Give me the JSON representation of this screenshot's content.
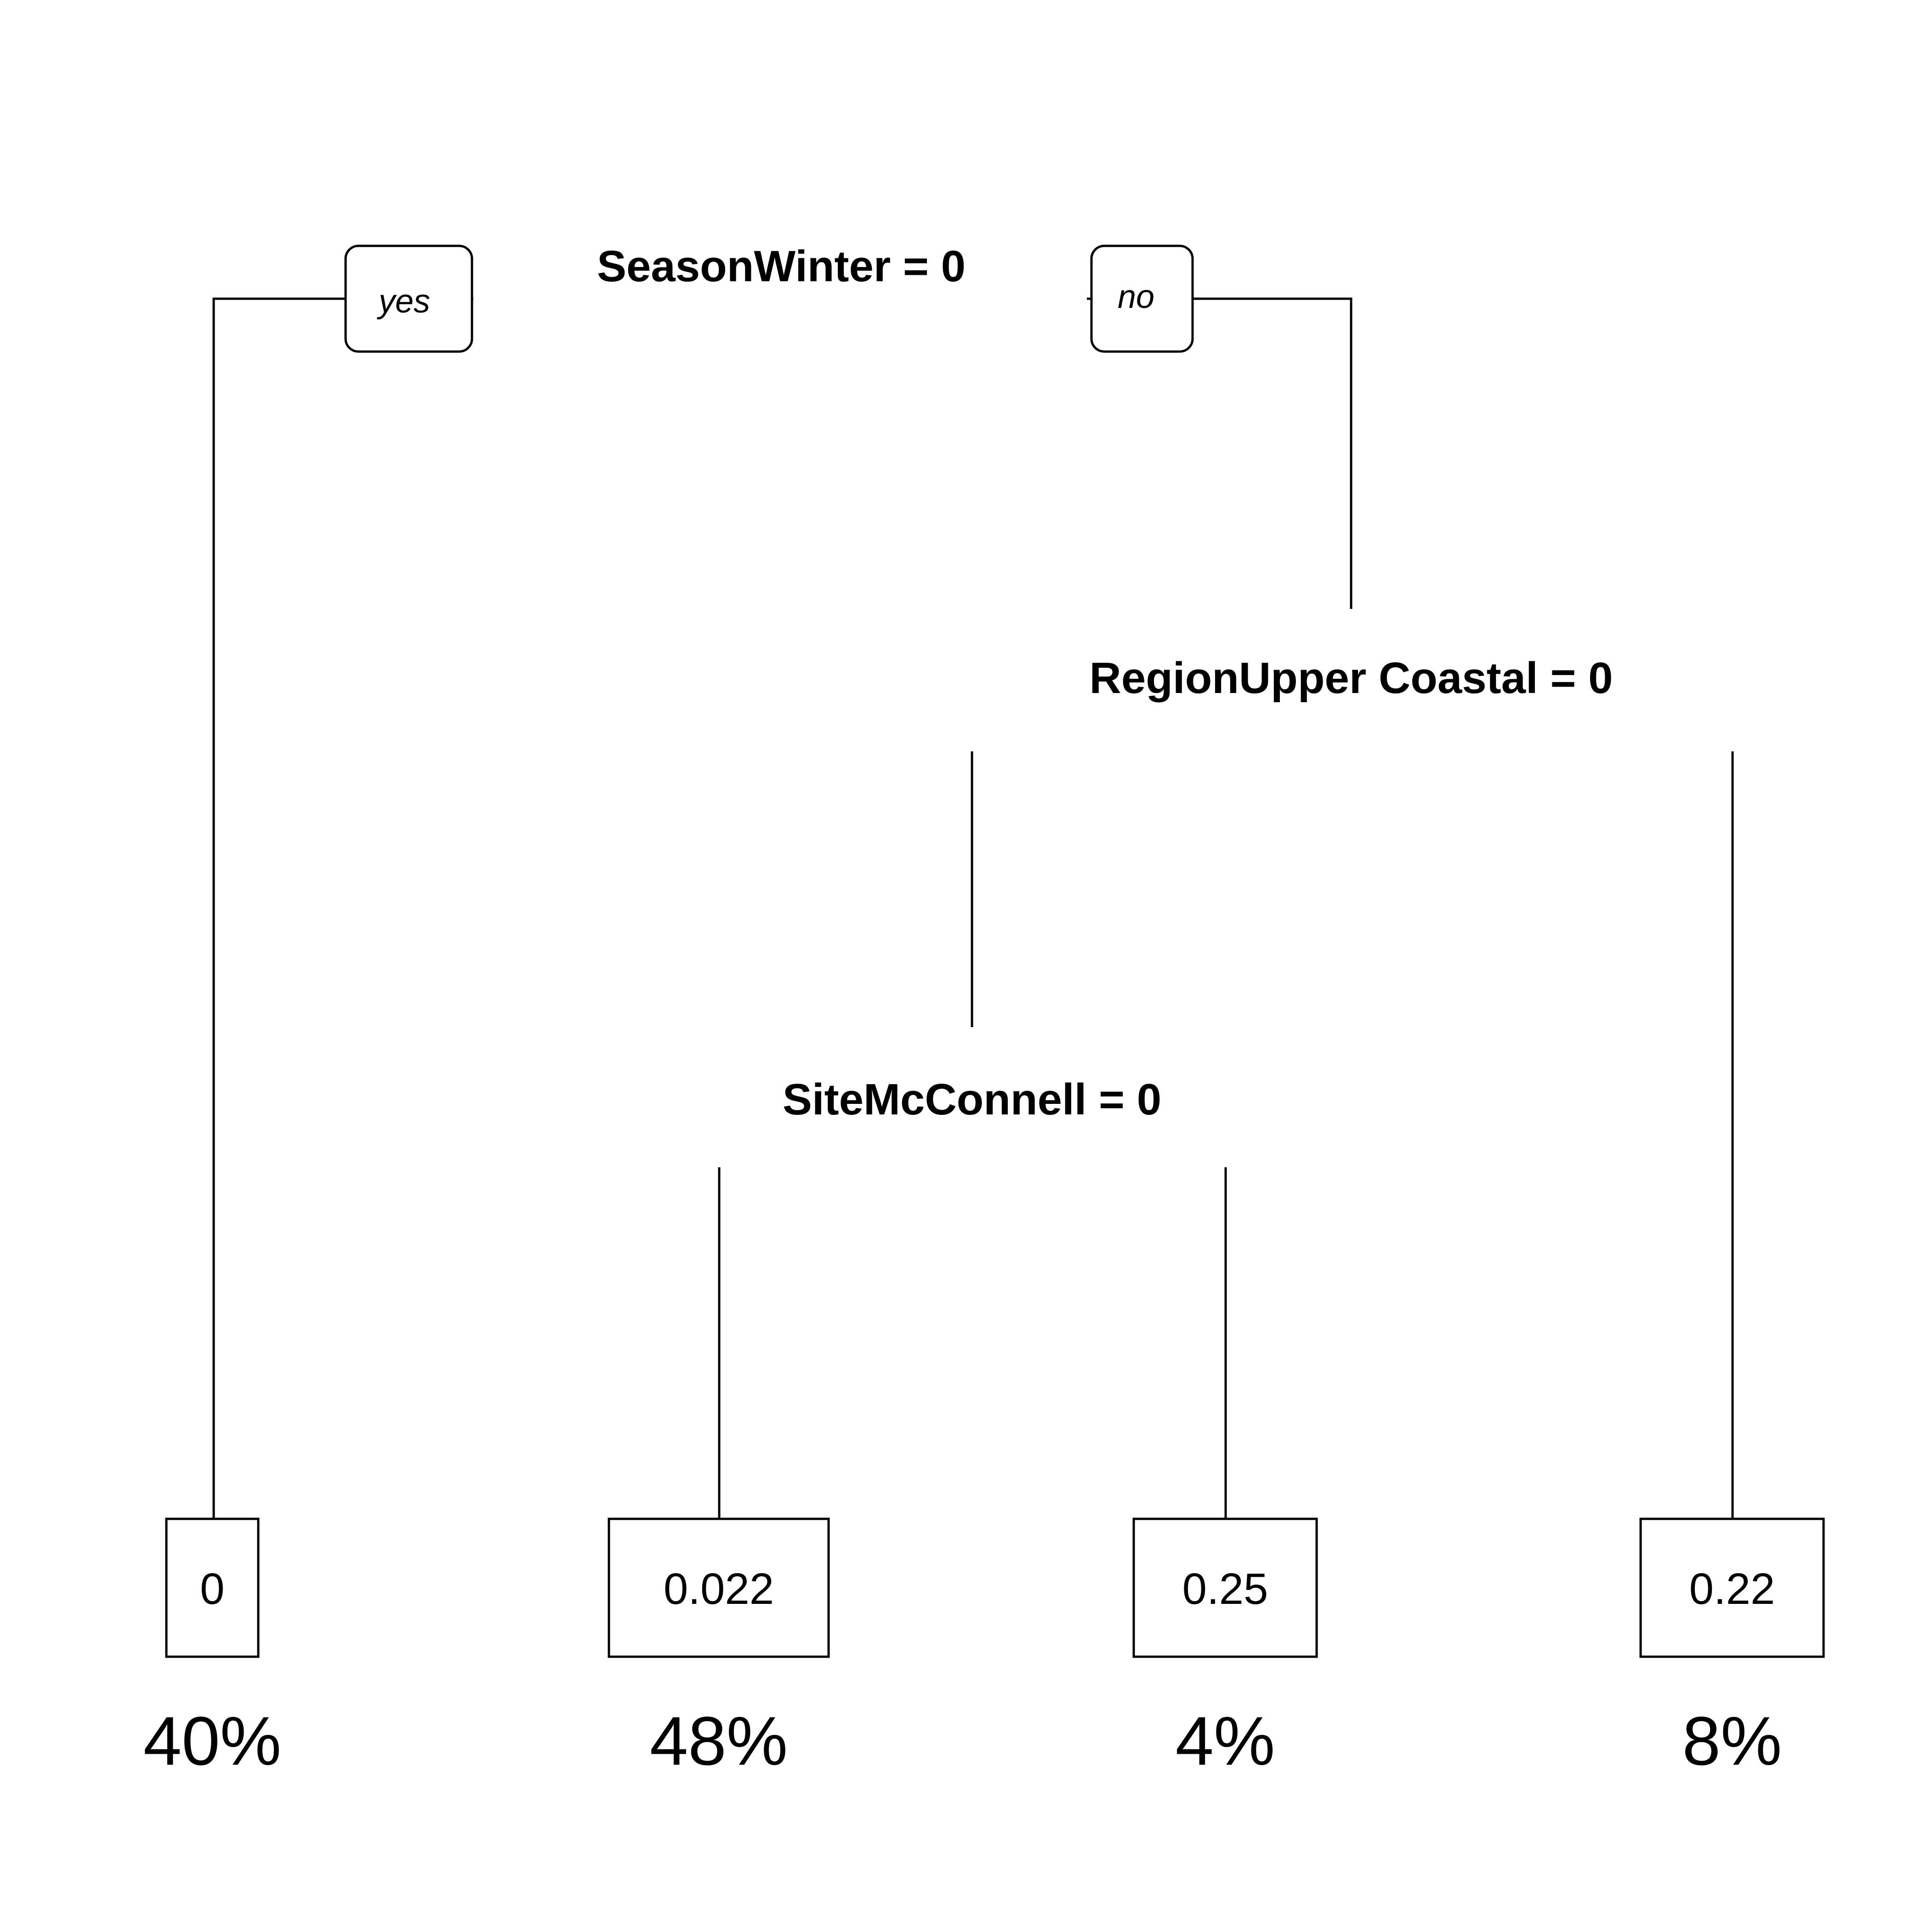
{
  "tree": {
    "root": {
      "split": "SeasonWinter = 0",
      "yes_label": "yes",
      "no_label": "no"
    },
    "node2": {
      "split": "RegionUpper Coastal = 0"
    },
    "node3": {
      "split": "SiteMcConnell = 0"
    },
    "leaves": [
      {
        "value": "0",
        "percent": "40%"
      },
      {
        "value": "0.022",
        "percent": "48%"
      },
      {
        "value": "0.25",
        "percent": "4%"
      },
      {
        "value": "0.22",
        "percent": "8%"
      }
    ]
  }
}
